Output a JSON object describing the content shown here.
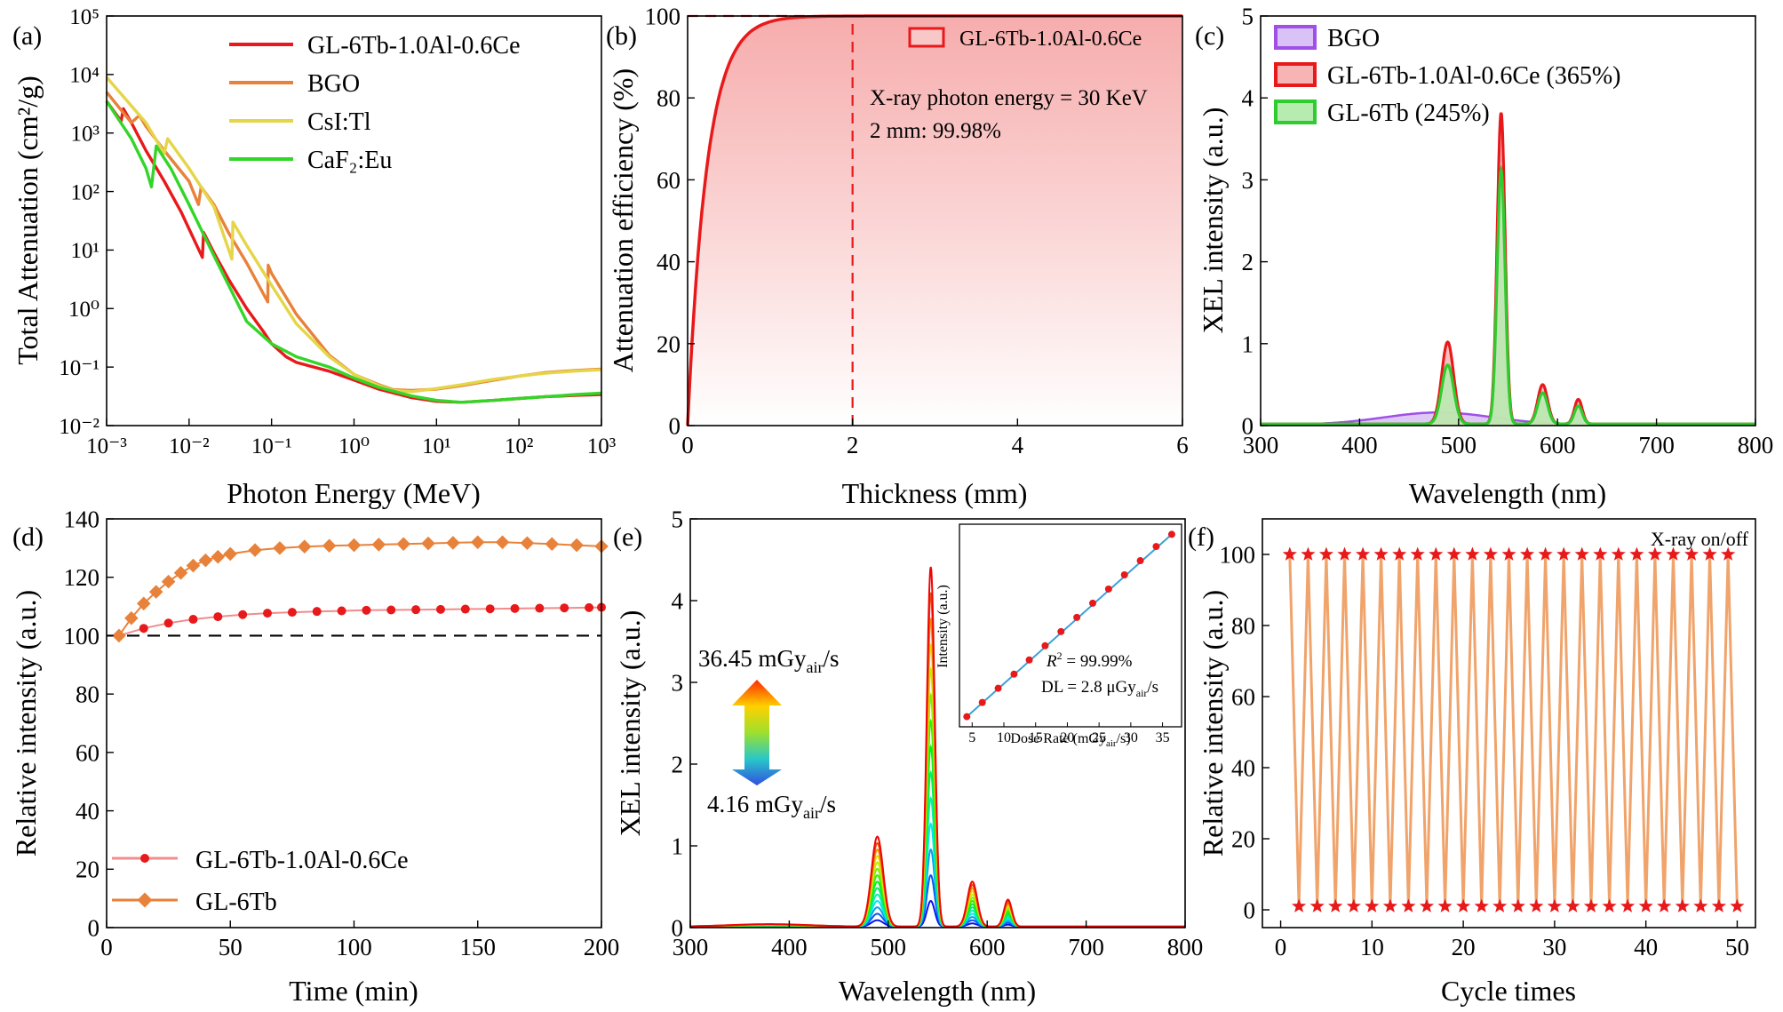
{
  "chart_data": [
    {
      "id": "a",
      "type": "line",
      "panel_label": "(a)",
      "xlabel": "Photon Energy (MeV)",
      "ylabel": "Total Attenuation (cm²/g)",
      "xscale": "log",
      "yscale": "log",
      "xlim": [
        0.001,
        1000
      ],
      "ylim": [
        0.01,
        100000
      ],
      "xticks": [
        "10⁻³",
        "10⁻²",
        "10⁻¹",
        "10⁰",
        "10¹",
        "10²",
        "10³"
      ],
      "yticks": [
        "10⁻²",
        "10⁻¹",
        "10⁰",
        "10¹",
        "10²",
        "10³",
        "10⁴",
        "10⁵"
      ],
      "legend_position": "top-right",
      "series": [
        {
          "name": "GL-6Tb-1.0Al-0.6Ce",
          "color": "#e8191a",
          "x": [
            0.001,
            0.0015,
            0.0016,
            0.002,
            0.003,
            0.005,
            0.008,
            0.0145,
            0.015,
            0.02,
            0.03,
            0.05,
            0.08,
            0.1,
            0.15,
            0.2,
            0.5,
            1,
            2,
            5,
            10,
            20,
            50,
            100,
            200,
            500,
            1000
          ],
          "y": [
            3500,
            1600,
            2600,
            1500,
            500,
            150,
            45,
            7.5,
            20,
            9,
            3.2,
            1,
            0.4,
            0.25,
            0.15,
            0.12,
            0.085,
            0.06,
            0.042,
            0.03,
            0.026,
            0.025,
            0.027,
            0.029,
            0.031,
            0.033,
            0.034
          ]
        },
        {
          "name": "BGO",
          "color": "#e8823a",
          "x": [
            0.001,
            0.002,
            0.0025,
            0.003,
            0.005,
            0.01,
            0.013,
            0.014,
            0.02,
            0.03,
            0.05,
            0.09,
            0.091,
            0.1,
            0.2,
            0.5,
            1,
            2,
            3,
            5,
            10,
            20,
            50,
            100,
            200,
            500,
            1000
          ],
          "y": [
            5000,
            1500,
            2000,
            1300,
            500,
            150,
            60,
            120,
            60,
            20,
            6,
            1.3,
            5.5,
            4,
            0.8,
            0.16,
            0.075,
            0.05,
            0.041,
            0.04,
            0.042,
            0.048,
            0.06,
            0.07,
            0.08,
            0.088,
            0.092
          ]
        },
        {
          "name": "CsI:Tl",
          "color": "#e5d548",
          "x": [
            0.001,
            0.003,
            0.005,
            0.0055,
            0.01,
            0.02,
            0.033,
            0.034,
            0.05,
            0.1,
            0.2,
            0.5,
            1,
            2,
            3,
            5,
            10,
            20,
            50,
            100,
            200,
            500,
            1000
          ],
          "y": [
            9000,
            1500,
            450,
            800,
            250,
            55,
            7,
            30,
            12,
            2.5,
            0.55,
            0.15,
            0.075,
            0.048,
            0.04,
            0.038,
            0.043,
            0.05,
            0.062,
            0.07,
            0.078,
            0.086,
            0.09
          ]
        },
        {
          "name": "CaF₂:Eu",
          "color": "#33d628",
          "x": [
            0.001,
            0.002,
            0.003,
            0.0035,
            0.004,
            0.006,
            0.01,
            0.02,
            0.05,
            0.1,
            0.2,
            0.5,
            1,
            2,
            5,
            10,
            20,
            50,
            100,
            200,
            500,
            1000
          ],
          "y": [
            3500,
            800,
            250,
            120,
            600,
            250,
            60,
            8,
            0.6,
            0.25,
            0.15,
            0.1,
            0.065,
            0.045,
            0.032,
            0.027,
            0.025,
            0.027,
            0.029,
            0.031,
            0.034,
            0.036
          ]
        }
      ]
    },
    {
      "id": "b",
      "type": "area",
      "panel_label": "(b)",
      "xlabel": "Thickness (mm)",
      "ylabel": "Attenuation efficiency (%)",
      "xlim": [
        0,
        6
      ],
      "ylim": [
        0,
        100
      ],
      "xticks": [
        0,
        2,
        4,
        6
      ],
      "yticks": [
        0,
        20,
        40,
        60,
        80,
        100
      ],
      "legend_position": "top-right",
      "series": [
        {
          "name": "GL-6Tb-1.0Al-0.6Ce",
          "color": "#e8191a",
          "model": "100*(1-exp(-4.27*x))"
        }
      ],
      "marker_x": 2,
      "marker_y": 100,
      "annotations": [
        "X-ray photon energy = 30 KeV",
        "2 mm: 99.98%"
      ]
    },
    {
      "id": "c",
      "type": "line",
      "panel_label": "(c)",
      "xlabel": "Wavelength (nm)",
      "ylabel": "XEL intensity (a.u.)",
      "xlim": [
        300,
        800
      ],
      "ylim": [
        0,
        5
      ],
      "xticks": [
        300,
        400,
        500,
        600,
        700,
        800
      ],
      "yticks": [
        0,
        1,
        2,
        3,
        4,
        5
      ],
      "legend_position": "top-left",
      "series": [
        {
          "name": "BGO",
          "color": "#a050e8",
          "fill": "#d9c2f5",
          "broad": {
            "center": 480,
            "width": 55,
            "height": 0.15
          }
        },
        {
          "name": "GL-6Tb-1.0Al-0.6Ce (365%)",
          "color": "#e8191a",
          "fill": "#f7b4b4",
          "peaks": [
            {
              "center": 489,
              "width": 6,
              "height": 1.0
            },
            {
              "center": 543,
              "width": 4,
              "height": 3.8
            },
            {
              "center": 585,
              "width": 5,
              "height": 0.48
            },
            {
              "center": 621,
              "width": 4,
              "height": 0.3
            }
          ]
        },
        {
          "name": "GL-6Tb (245%)",
          "color": "#2ecc2e",
          "fill": "#b6ecb0",
          "peaks": [
            {
              "center": 489,
              "width": 6,
              "height": 0.72
            },
            {
              "center": 543,
              "width": 4,
              "height": 3.1
            },
            {
              "center": 585,
              "width": 5,
              "height": 0.38
            },
            {
              "center": 621,
              "width": 4,
              "height": 0.22
            }
          ]
        }
      ]
    },
    {
      "id": "d",
      "type": "scatter",
      "panel_label": "(d)",
      "xlabel": "Time (min)",
      "ylabel": "Relative intensity (a.u.)",
      "xlim": [
        0,
        200
      ],
      "ylim": [
        0,
        140
      ],
      "xticks": [
        0,
        50,
        100,
        150,
        200
      ],
      "yticks": [
        0,
        20,
        40,
        60,
        80,
        100,
        120,
        140
      ],
      "reference_line_y": 100,
      "legend_position": "bottom-left",
      "series": [
        {
          "name": "GL-6Tb-1.0Al-0.6Ce",
          "color": "#f08c8c",
          "marker_color": "#e8191a",
          "x": [
            5,
            15,
            25,
            35,
            45,
            55,
            65,
            75,
            85,
            95,
            105,
            115,
            125,
            135,
            145,
            155,
            165,
            175,
            185,
            195,
            200
          ],
          "y": [
            100,
            102.5,
            104.3,
            105.6,
            106.5,
            107.2,
            107.7,
            108.0,
            108.3,
            108.5,
            108.7,
            108.8,
            108.9,
            109.0,
            109.1,
            109.2,
            109.3,
            109.4,
            109.5,
            109.6,
            109.7
          ]
        },
        {
          "name": "GL-6Tb",
          "color": "#e8823a",
          "marker_color": "#e8823a",
          "x": [
            5,
            10,
            15,
            20,
            25,
            30,
            35,
            40,
            45,
            50,
            60,
            70,
            80,
            90,
            100,
            110,
            120,
            130,
            140,
            150,
            160,
            170,
            180,
            190,
            200
          ],
          "y": [
            100,
            106,
            111,
            115,
            118.5,
            121.5,
            124,
            125.8,
            127,
            128,
            129.3,
            130,
            130.5,
            130.8,
            131,
            131.2,
            131.4,
            131.6,
            131.8,
            132,
            132,
            131.7,
            131.4,
            131,
            130.6
          ]
        }
      ]
    },
    {
      "id": "e",
      "type": "line",
      "panel_label": "(e)",
      "xlabel": "Wavelength (nm)",
      "ylabel": "XEL intensity (a.u.)",
      "xlim": [
        300,
        800
      ],
      "ylim": [
        0,
        5
      ],
      "xticks": [
        300,
        400,
        500,
        600,
        700,
        800
      ],
      "yticks": [
        0,
        1,
        2,
        3,
        4,
        5
      ],
      "dose_rate_min": "4.16 mGy",
      "dose_rate_max": "36.45 mGy",
      "unit_subscript": "air",
      "unit_suffix": "/s",
      "num_curves": 14,
      "max_peaks": [
        {
          "center": 489,
          "width": 6,
          "height": 1.1
        },
        {
          "center": 543,
          "width": 4,
          "height": 4.4
        },
        {
          "center": 585,
          "width": 5,
          "height": 0.55
        },
        {
          "center": 621,
          "width": 4,
          "height": 0.33
        }
      ],
      "inset": {
        "type": "scatter",
        "xlabel": "Dose Rate (mGy",
        "xlabel_sub": "air",
        "xlabel_suffix": "/s)",
        "ylabel": "Intensity (a.u.)",
        "xlim": [
          3,
          38
        ],
        "xticks": [
          5,
          10,
          15,
          20,
          25,
          30,
          35
        ],
        "x": [
          4.16,
          6.6,
          9.1,
          11.6,
          14.0,
          16.5,
          19.0,
          21.5,
          24.0,
          26.5,
          29.0,
          31.5,
          34.0,
          36.45
        ],
        "y": [
          0.05,
          0.12,
          0.19,
          0.26,
          0.33,
          0.4,
          0.47,
          0.54,
          0.61,
          0.68,
          0.75,
          0.82,
          0.89,
          0.95
        ],
        "fit_color": "#3aa0d8",
        "marker_color": "#e8191a",
        "r2_label": "R",
        "r2_value": " = 99.99%",
        "dl_label": "DL = 2.8 μGy"
      }
    },
    {
      "id": "f",
      "type": "line",
      "panel_label": "(f)",
      "xlabel": "Cycle times",
      "ylabel": "Relative intensity (a.u.)",
      "xlim": [
        -2,
        52
      ],
      "ylim": [
        -5,
        110
      ],
      "xticks": [
        0,
        10,
        20,
        30,
        40,
        50
      ],
      "yticks": [
        0,
        20,
        40,
        60,
        80,
        100
      ],
      "annotation": "X-ray on/off",
      "line_color": "#f0a36a",
      "marker_color": "#e8191a",
      "on_x": [
        1,
        3,
        5,
        7,
        9,
        11,
        13,
        15,
        17,
        19,
        21,
        23,
        25,
        27,
        29,
        31,
        33,
        35,
        37,
        39,
        41,
        43,
        45,
        47,
        49
      ],
      "on_y": [
        100,
        100,
        100,
        100,
        100,
        100,
        100,
        100,
        100,
        100,
        100,
        100,
        100,
        100,
        100,
        100,
        100,
        100,
        100,
        100,
        100,
        100,
        100,
        100,
        100
      ],
      "off_x": [
        2,
        4,
        6,
        8,
        10,
        12,
        14,
        16,
        18,
        20,
        22,
        24,
        26,
        28,
        30,
        32,
        34,
        36,
        38,
        40,
        42,
        44,
        46,
        48,
        50
      ],
      "off_y": [
        1,
        1,
        1,
        1,
        1,
        1,
        1,
        1,
        1,
        1,
        1,
        1,
        1,
        1,
        1,
        1,
        1,
        1,
        1,
        1,
        1,
        1,
        1,
        1,
        1
      ]
    }
  ]
}
